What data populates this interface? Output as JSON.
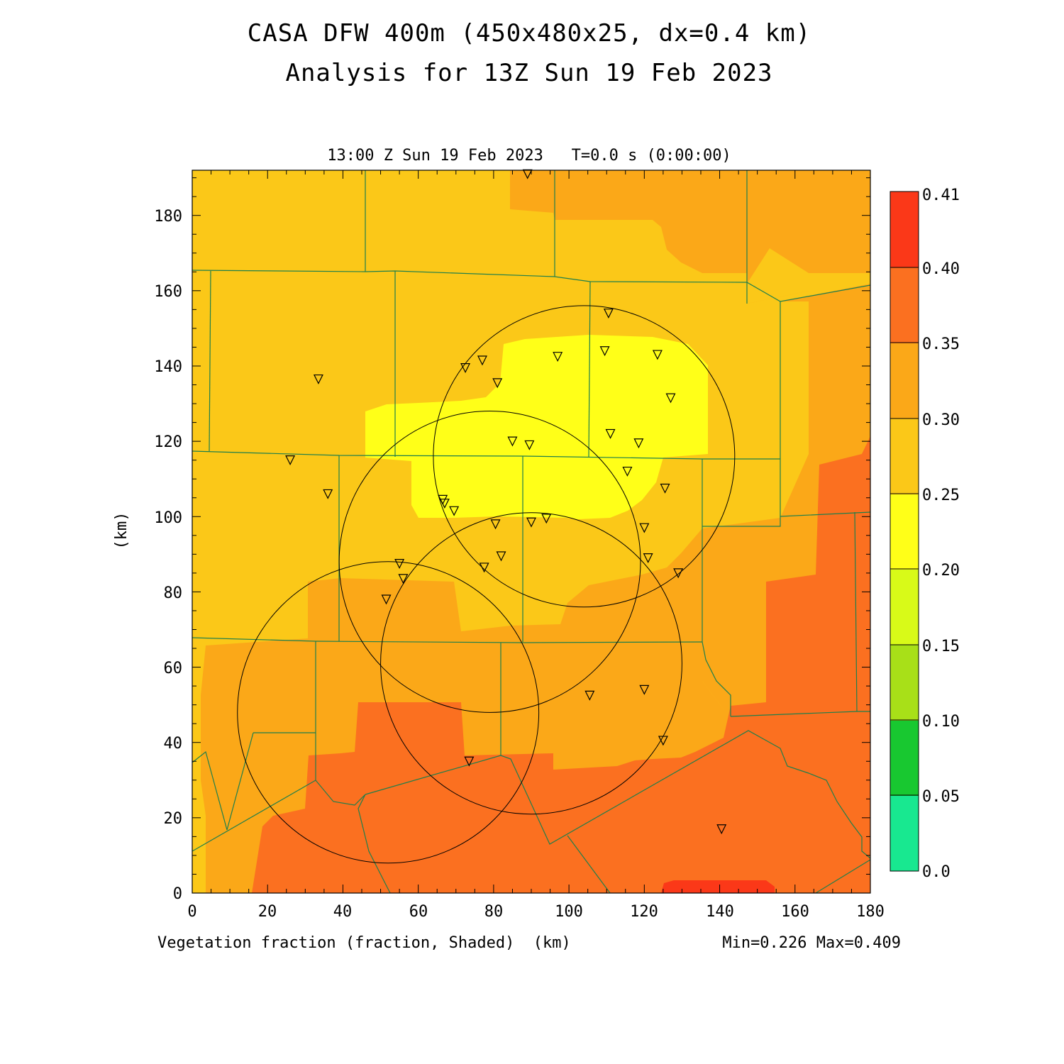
{
  "title": {
    "line1": "CASA DFW 400m (450x480x25, dx=0.4 km)",
    "line2": "Analysis for 13Z Sun 19 Feb 2023"
  },
  "plot": {
    "subtitle": "13:00 Z Sun 19 Feb 2023   T=0.0 s (0:00:00)",
    "bottom_label": "Vegetation fraction (fraction, Shaded)  (km)",
    "minmax": "Min=0.226 Max=0.409",
    "y_unit": "(km)",
    "x_range": [
      0,
      180
    ],
    "y_range": [
      0,
      192
    ],
    "x_ticks": [
      "0",
      "20",
      "40",
      "60",
      "80",
      "100",
      "120",
      "140",
      "160",
      "180"
    ],
    "y_ticks": [
      "0",
      "20",
      "40",
      "60",
      "80",
      "100",
      "120",
      "140",
      "160",
      "180"
    ]
  },
  "colorbar": {
    "labels": [
      "0.0",
      "0.05",
      "0.10",
      "0.15",
      "0.20",
      "0.25",
      "0.30",
      "0.35",
      "0.40",
      "0.41"
    ],
    "colors": [
      "#18e890",
      "#18c830",
      "#a8e018",
      "#d8fa18",
      "#ffff18",
      "#fbc818",
      "#fba818",
      "#fb7020",
      "#fb3818"
    ]
  },
  "fill_colors": {
    "background": "#fbc818",
    "light": "#ffff18",
    "mid": "#fba818",
    "dark": "#fb7020",
    "max": "#fb3818",
    "county_line": "#1e7f4c",
    "circle": "#000000"
  },
  "radar_rings": [
    {
      "cx": 52,
      "cy": 48,
      "r": 40
    },
    {
      "cx": 79,
      "cy": 88,
      "r": 40
    },
    {
      "cx": 90,
      "cy": 61,
      "r": 40
    },
    {
      "cx": 104,
      "cy": 116,
      "r": 40
    }
  ],
  "stations": [
    [
      89,
      191
    ],
    [
      110.5,
      154
    ],
    [
      77,
      141.5
    ],
    [
      72.5,
      139.5
    ],
    [
      81,
      135.5
    ],
    [
      97,
      142.5
    ],
    [
      109.5,
      144
    ],
    [
      123.5,
      143
    ],
    [
      127,
      131.5
    ],
    [
      33.5,
      136.5
    ],
    [
      85,
      120
    ],
    [
      89.5,
      119
    ],
    [
      111,
      122
    ],
    [
      118.5,
      119.5
    ],
    [
      26,
      115
    ],
    [
      115.5,
      112
    ],
    [
      125.5,
      107.5
    ],
    [
      36,
      106
    ],
    [
      66.5,
      104.5
    ],
    [
      67,
      103.5
    ],
    [
      69.5,
      101.5
    ],
    [
      94,
      99.5
    ],
    [
      90,
      98.5
    ],
    [
      80.5,
      98
    ],
    [
      120,
      97
    ],
    [
      82,
      89.5
    ],
    [
      121,
      89
    ],
    [
      55,
      87.5
    ],
    [
      77.5,
      86.5
    ],
    [
      129,
      85
    ],
    [
      56,
      83.5
    ],
    [
      51.5,
      78
    ],
    [
      105.5,
      52.5
    ],
    [
      120,
      54
    ],
    [
      125,
      40.5
    ],
    [
      73.5,
      35
    ],
    [
      140.5,
      17
    ]
  ]
}
